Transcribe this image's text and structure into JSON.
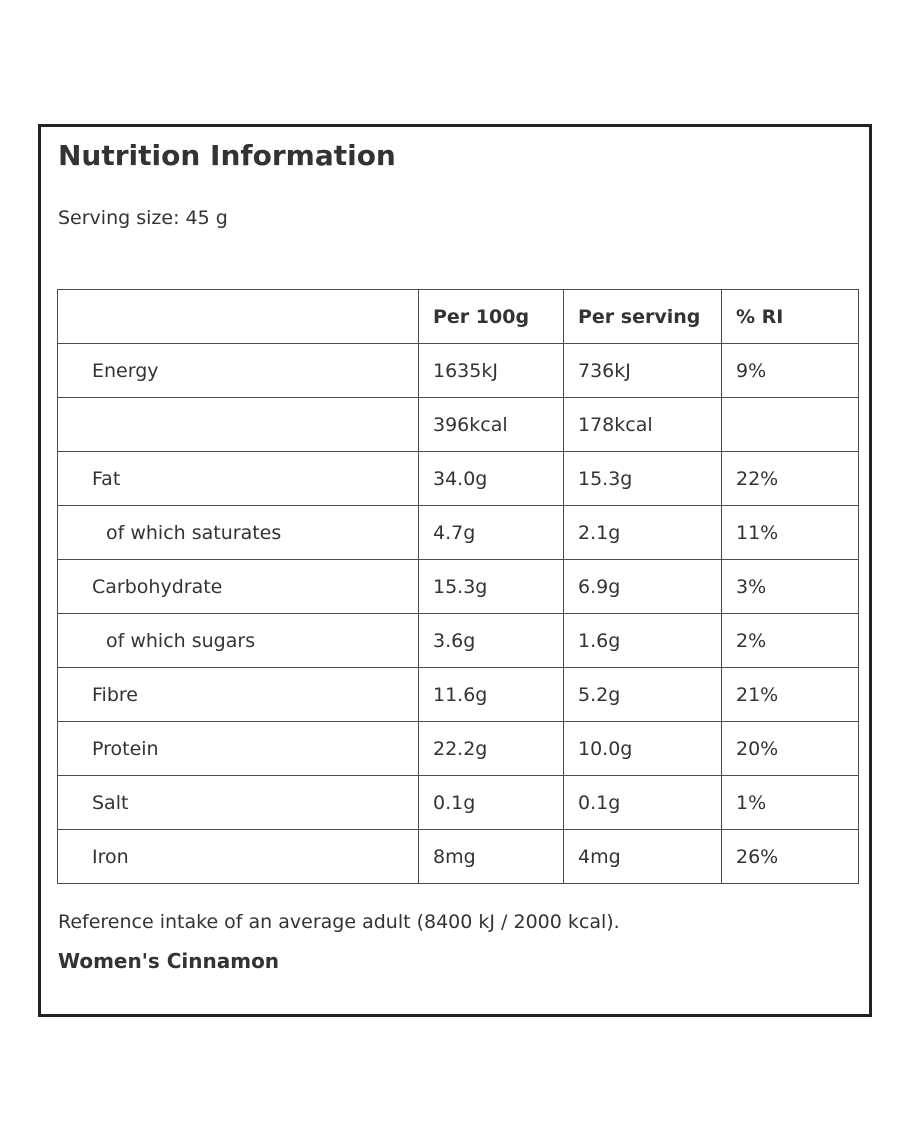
{
  "panel": {
    "title": "Nutrition Information",
    "serving_size_label": "Serving size: 45 g"
  },
  "table": {
    "headers": [
      "",
      "Per 100g",
      "Per serving",
      "% RI"
    ],
    "rows": [
      {
        "name": "Energy",
        "per_100g": "1635kJ",
        "per_serving": "736kJ",
        "ri": "9%"
      },
      {
        "name": "",
        "per_100g": "396kcal",
        "per_serving": "178kcal",
        "ri": ""
      },
      {
        "name": "Fat",
        "per_100g": "34.0g",
        "per_serving": "15.3g",
        "ri": "22%"
      },
      {
        "name": "of which saturates",
        "per_100g": "4.7g",
        "per_serving": "2.1g",
        "ri": "11%"
      },
      {
        "name": "Carbohydrate",
        "per_100g": "15.3g",
        "per_serving": "6.9g",
        "ri": "3%"
      },
      {
        "name": "of which sugars",
        "per_100g": "3.6g",
        "per_serving": "1.6g",
        "ri": "2%"
      },
      {
        "name": "Fibre",
        "per_100g": "11.6g",
        "per_serving": "5.2g",
        "ri": "21%"
      },
      {
        "name": "Protein",
        "per_100g": "22.2g",
        "per_serving": "10.0g",
        "ri": "20%"
      },
      {
        "name": "Salt",
        "per_100g": "0.1g",
        "per_serving": "0.1g",
        "ri": "1%"
      },
      {
        "name": "Iron",
        "per_100g": "8mg",
        "per_serving": "4mg",
        "ri": "26%"
      }
    ]
  },
  "footer": {
    "reference_note": "Reference intake of an average adult (8400 kJ / 2000 kcal).",
    "product_name": "Women's Cinnamon"
  },
  "colors": {
    "panel_border": "#222222",
    "table_border": "#4d4d4d",
    "text": "#333333"
  }
}
